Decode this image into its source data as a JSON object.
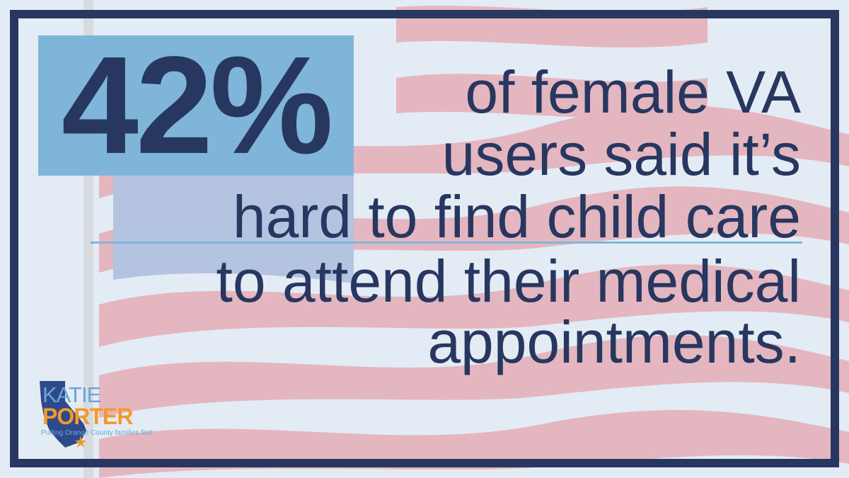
{
  "headline": {
    "stat": "42%",
    "lines": [
      "of female VA",
      "users said it’s",
      "hard to find child care",
      "to attend their medical",
      "appointments."
    ]
  },
  "logo": {
    "first_name": "KATIE",
    "last_name": "PORTER",
    "tagline": "Putting Orange County families first"
  },
  "colors": {
    "navy": "#27375f",
    "light_blue": "#7eb5d8",
    "orange": "#f39a2d"
  }
}
